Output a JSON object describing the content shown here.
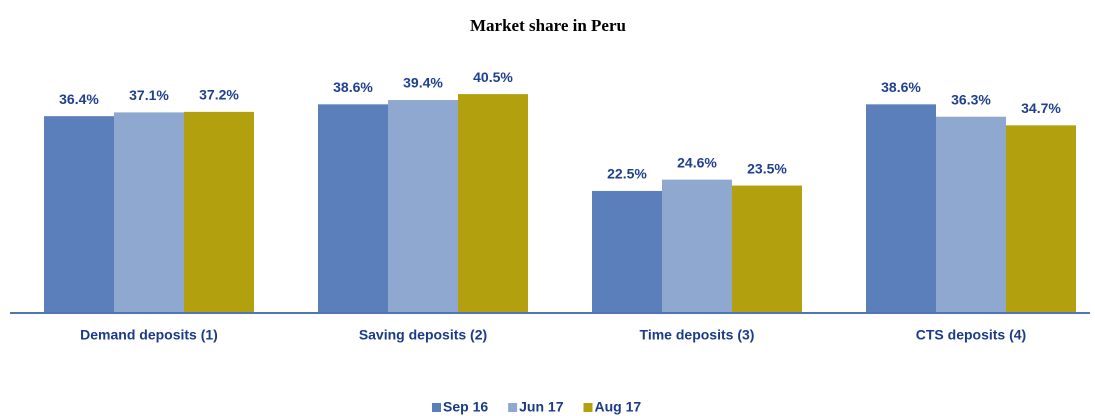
{
  "chart_data": {
    "type": "bar",
    "title": "Market share in Peru",
    "categories": [
      "Demand deposits (1)",
      "Saving deposits (2)",
      "Time deposits (3)",
      "CTS deposits (4)"
    ],
    "series": [
      {
        "name": "Sep 16",
        "color": "#5a7fbb",
        "values": [
          36.4,
          38.6,
          22.5,
          38.6
        ],
        "value_labels": [
          "36.4%",
          "38.6%",
          "22.5%",
          "38.6%"
        ]
      },
      {
        "name": "Jun 17",
        "color": "#8ea8d0",
        "values": [
          37.1,
          39.4,
          24.6,
          36.3
        ],
        "value_labels": [
          "37.1%",
          "39.4%",
          "24.6%",
          "36.3%"
        ]
      },
      {
        "name": "Aug 17",
        "color": "#b2a00f",
        "values": [
          37.2,
          40.5,
          23.5,
          34.7
        ],
        "value_labels": [
          "37.2%",
          "40.5%",
          "23.5%",
          "34.7%"
        ]
      }
    ]
  }
}
